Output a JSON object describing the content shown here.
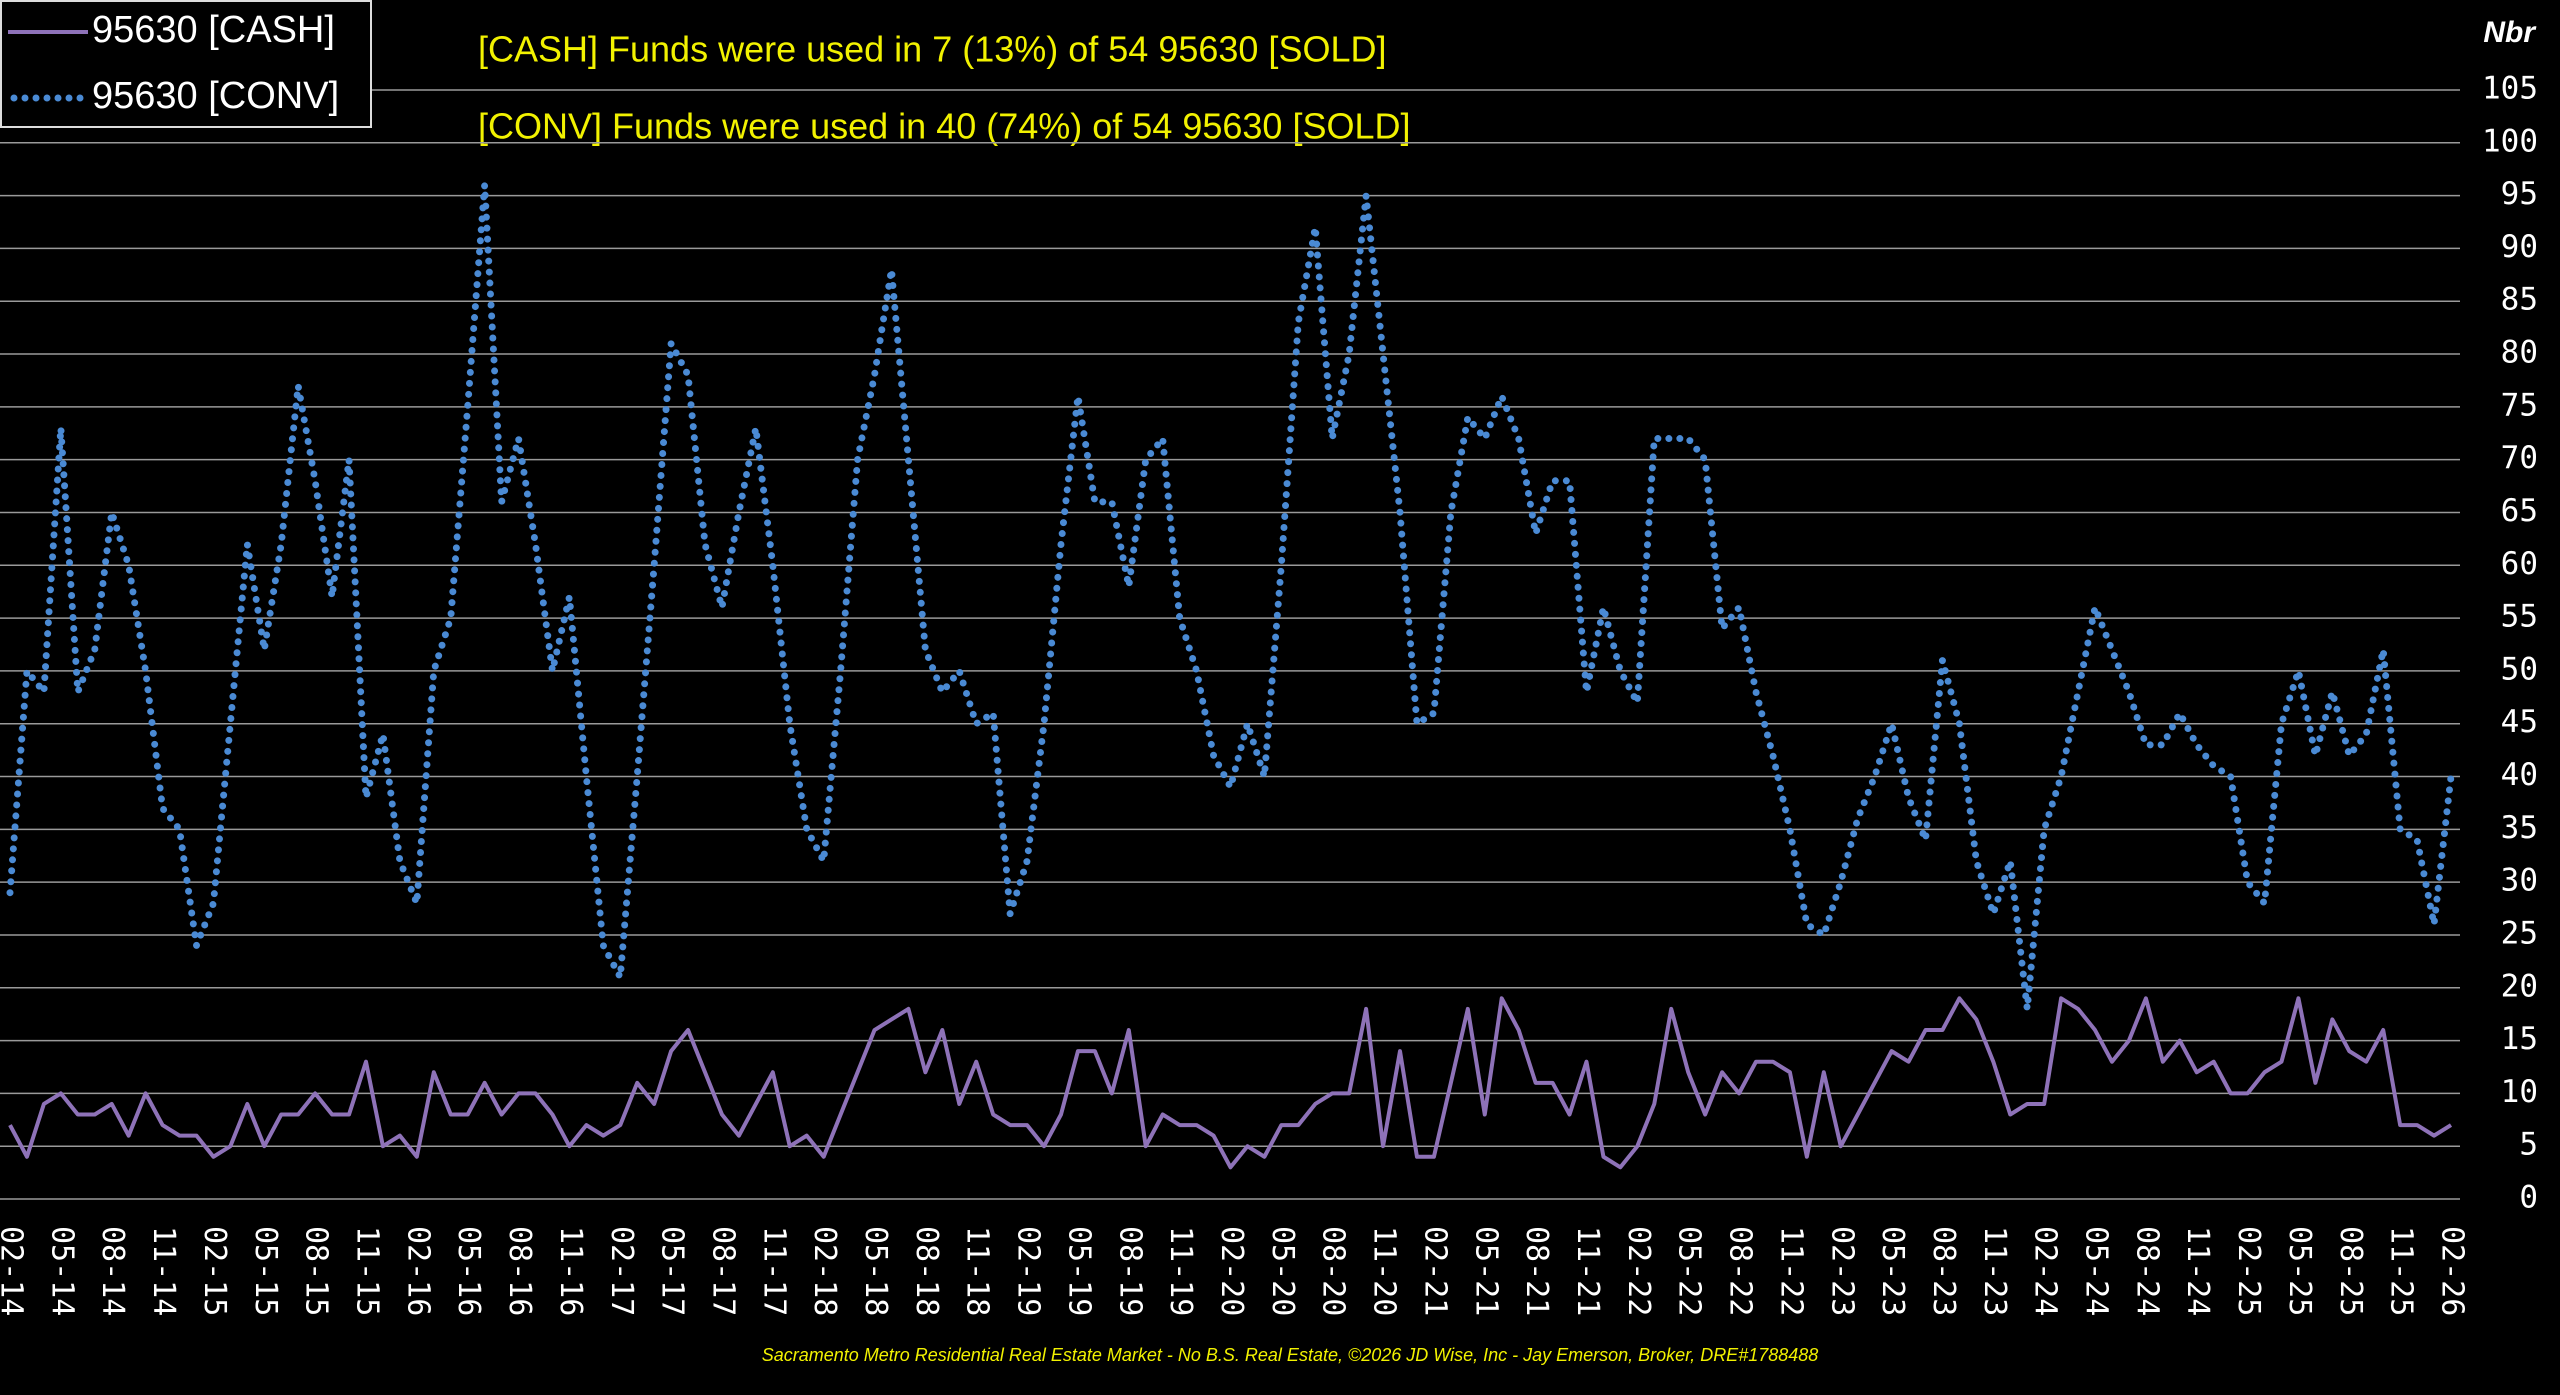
{
  "chart_data": {
    "type": "line",
    "y_label": "Nbr",
    "annotations": [
      "[CASH] Funds were used in 7 (13%) of 54 95630 [SOLD]",
      "[CONV] Funds were used in 40 (74%) of 54 95630 [SOLD]"
    ],
    "footer": "Sacramento Metro Residential Real Estate Market - No B.S. Real Estate, ©2026 JD Wise, Inc - Jay Emerson, Broker, DRE#1788488",
    "legend": "upper left",
    "grid": true,
    "ylim": [
      0,
      105
    ],
    "yticks": [
      0,
      5,
      10,
      15,
      20,
      25,
      30,
      35,
      40,
      45,
      50,
      55,
      60,
      65,
      70,
      75,
      80,
      85,
      90,
      95,
      100,
      105
    ],
    "categories": [
      "02-14",
      null,
      null,
      "05-14",
      null,
      null,
      "08-14",
      null,
      null,
      "11-14",
      null,
      null,
      "02-15",
      null,
      null,
      "05-15",
      null,
      null,
      "08-15",
      null,
      null,
      "11-15",
      null,
      null,
      "02-16",
      null,
      null,
      "05-16",
      null,
      null,
      "08-16",
      null,
      null,
      "11-16",
      null,
      null,
      "02-17",
      null,
      null,
      "05-17",
      null,
      null,
      "08-17",
      null,
      null,
      "11-17",
      null,
      null,
      "02-18",
      null,
      null,
      "05-18",
      null,
      null,
      "08-18",
      null,
      null,
      "11-18",
      null,
      null,
      "02-19",
      null,
      null,
      "05-19",
      null,
      null,
      "08-19",
      null,
      null,
      "11-19",
      null,
      null,
      "02-20",
      null,
      null,
      "05-20",
      null,
      null,
      "08-20",
      null,
      null,
      "11-20",
      null,
      null,
      "02-21",
      null,
      null,
      "05-21",
      null,
      null,
      "08-21",
      null,
      null,
      "11-21",
      null,
      null,
      "02-22",
      null,
      null,
      "05-22",
      null,
      null,
      "08-22",
      null,
      null,
      "11-22",
      null,
      null,
      "02-23",
      null,
      null,
      "05-23",
      null,
      null,
      "08-23",
      null,
      null,
      "11-23",
      null,
      null,
      "02-24",
      null,
      null,
      "05-24",
      null,
      null,
      "08-24",
      null,
      null,
      "11-24",
      null,
      null,
      "02-25",
      null,
      null,
      "05-25",
      null,
      null,
      "08-25",
      null,
      null,
      "11-25",
      null,
      null,
      "02-26"
    ],
    "series": [
      {
        "name": "95630 [CASH]",
        "color": "#8e72b8",
        "style": "solid",
        "values": [
          7,
          4,
          9,
          10,
          8,
          8,
          9,
          6,
          10,
          7,
          6,
          6,
          4,
          5,
          9,
          5,
          8,
          8,
          10,
          8,
          8,
          13,
          5,
          6,
          4,
          12,
          8,
          8,
          11,
          8,
          10,
          10,
          8,
          5,
          7,
          6,
          7,
          11,
          9,
          14,
          16,
          12,
          8,
          6,
          9,
          12,
          5,
          6,
          4,
          8,
          12,
          16,
          17,
          18,
          12,
          16,
          9,
          13,
          8,
          7,
          7,
          5,
          8,
          14,
          14,
          10,
          16,
          5,
          8,
          7,
          7,
          6,
          3,
          5,
          4,
          7,
          7,
          9,
          10,
          10,
          18,
          5,
          14,
          4,
          4,
          11,
          18,
          8,
          19,
          16,
          11,
          11,
          8,
          13,
          4,
          3,
          5,
          9,
          18,
          12,
          8,
          12,
          10,
          13,
          13,
          12,
          4,
          12,
          5,
          8,
          11,
          14,
          13,
          16,
          16,
          19,
          17,
          13,
          8,
          9,
          9,
          19,
          18,
          16,
          13,
          15,
          19,
          13,
          15,
          12,
          13,
          10,
          10,
          12,
          13,
          19,
          11,
          17,
          14,
          13,
          16,
          7,
          7,
          6,
          7
        ]
      },
      {
        "name": "95630 [CONV]",
        "color": "#4a8ad4",
        "style": "dotted",
        "values": [
          29,
          50,
          48,
          73,
          48,
          52,
          65,
          60,
          50,
          37,
          35,
          24,
          28,
          45,
          62,
          52,
          62,
          77,
          68,
          57,
          70,
          38,
          44,
          32,
          28,
          50,
          55,
          75,
          96,
          66,
          72,
          62,
          50,
          57,
          40,
          24,
          21,
          40,
          60,
          81,
          78,
          62,
          56,
          65,
          73,
          60,
          45,
          35,
          32,
          50,
          70,
          78,
          88,
          70,
          52,
          48,
          50,
          45,
          46,
          27,
          32,
          45,
          62,
          76,
          66,
          66,
          58,
          70,
          72,
          55,
          50,
          42,
          39,
          45,
          40,
          60,
          83,
          92,
          72,
          80,
          95,
          80,
          65,
          45,
          46,
          65,
          74,
          72,
          76,
          72,
          63,
          68,
          68,
          48,
          56,
          50,
          47,
          72,
          72,
          72,
          70,
          54,
          56,
          48,
          42,
          35,
          26,
          25,
          30,
          36,
          40,
          45,
          38,
          34,
          51,
          45,
          32,
          27,
          32,
          18,
          35,
          40,
          48,
          56,
          52,
          48,
          43,
          43,
          46,
          43,
          41,
          40,
          30,
          28,
          45,
          50,
          42,
          48,
          42,
          44,
          52,
          35,
          34,
          26,
          40
        ]
      }
    ]
  }
}
